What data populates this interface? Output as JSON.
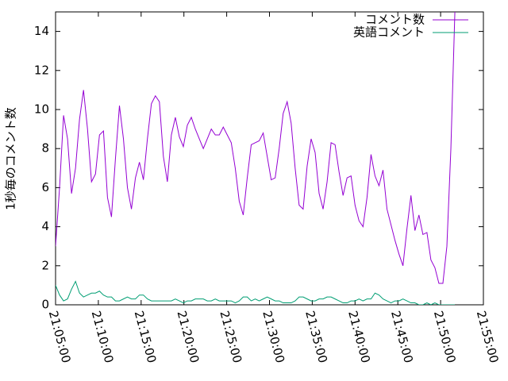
{
  "chart_data": {
    "type": "line",
    "ylabel": "1秒毎のコメント数",
    "x": [
      "21:05:00",
      "21:05:28",
      "21:05:56",
      "21:06:24",
      "21:06:52",
      "21:07:20",
      "21:07:48",
      "21:08:16",
      "21:08:44",
      "21:09:12",
      "21:09:40",
      "21:10:08",
      "21:10:36",
      "21:11:04",
      "21:11:32",
      "21:12:00",
      "21:12:28",
      "21:12:56",
      "21:13:24",
      "21:13:52",
      "21:14:20",
      "21:14:48",
      "21:15:16",
      "21:15:44",
      "21:16:12",
      "21:16:40",
      "21:17:08",
      "21:17:36",
      "21:18:04",
      "21:18:32",
      "21:19:00",
      "21:19:28",
      "21:19:56",
      "21:20:24",
      "21:20:52",
      "21:21:20",
      "21:21:48",
      "21:22:16",
      "21:22:44",
      "21:23:12",
      "21:23:40",
      "21:24:08",
      "21:24:36",
      "21:25:04",
      "21:25:32",
      "21:26:00",
      "21:26:28",
      "21:26:56",
      "21:27:24",
      "21:27:52",
      "21:28:20",
      "21:28:48",
      "21:29:16",
      "21:29:44",
      "21:30:12",
      "21:30:40",
      "21:31:08",
      "21:31:36",
      "21:32:04",
      "21:32:32",
      "21:33:00",
      "21:33:28",
      "21:33:56",
      "21:34:24",
      "21:34:52",
      "21:35:20",
      "21:35:48",
      "21:36:16",
      "21:36:44",
      "21:37:12",
      "21:37:40",
      "21:38:08",
      "21:38:36",
      "21:39:04",
      "21:39:32",
      "21:40:00",
      "21:40:28",
      "21:40:56",
      "21:41:24",
      "21:41:52",
      "21:42:20",
      "21:42:48",
      "21:43:16",
      "21:43:44",
      "21:44:12",
      "21:44:40",
      "21:45:08",
      "21:45:36",
      "21:46:04",
      "21:46:32",
      "21:47:00",
      "21:47:28",
      "21:47:56",
      "21:48:24",
      "21:48:52",
      "21:49:20",
      "21:49:48",
      "21:50:16",
      "21:50:44",
      "21:51:12",
      "21:51:40"
    ],
    "series": [
      {
        "name": "コメント数",
        "color": "#9400d3",
        "values": [
          3.0,
          6.0,
          9.7,
          8.5,
          5.7,
          7.0,
          9.5,
          11.0,
          9.0,
          6.3,
          6.7,
          8.7,
          8.9,
          5.5,
          4.5,
          7.5,
          10.2,
          8.5,
          6.0,
          4.9,
          6.5,
          7.3,
          6.4,
          8.5,
          10.3,
          10.7,
          10.4,
          7.6,
          6.3,
          8.7,
          9.6,
          8.6,
          8.1,
          9.2,
          9.6,
          9.0,
          8.5,
          8.0,
          8.5,
          9.0,
          8.7,
          8.7,
          9.1,
          8.7,
          8.3,
          7.0,
          5.3,
          4.6,
          6.5,
          8.2,
          8.3,
          8.4,
          8.8,
          7.6,
          6.4,
          6.5,
          8.0,
          9.8,
          10.4,
          9.3,
          7.0,
          5.1,
          4.9,
          7.1,
          8.5,
          7.8,
          5.7,
          4.9,
          6.3,
          8.3,
          8.2,
          6.8,
          5.6,
          6.5,
          6.6,
          5.1,
          4.3,
          4.0,
          5.5,
          7.7,
          6.6,
          6.1,
          6.9,
          4.9,
          4.1,
          3.3,
          2.6,
          2.0,
          3.9,
          5.6,
          3.8,
          4.6,
          3.6,
          3.7,
          2.3,
          1.9,
          1.1,
          1.1,
          3.0,
          8.0,
          15
        ]
      },
      {
        "name": "英語コメント",
        "color": "#009e73",
        "values": [
          1.0,
          0.5,
          0.2,
          0.3,
          0.8,
          1.2,
          0.6,
          0.4,
          0.5,
          0.6,
          0.6,
          0.7,
          0.5,
          0.4,
          0.4,
          0.2,
          0.2,
          0.3,
          0.4,
          0.3,
          0.3,
          0.5,
          0.5,
          0.3,
          0.2,
          0.2,
          0.2,
          0.2,
          0.2,
          0.2,
          0.3,
          0.2,
          0.1,
          0.2,
          0.2,
          0.3,
          0.3,
          0.3,
          0.2,
          0.2,
          0.3,
          0.2,
          0.2,
          0.2,
          0.2,
          0.1,
          0.2,
          0.4,
          0.4,
          0.2,
          0.3,
          0.2,
          0.3,
          0.4,
          0.3,
          0.2,
          0.2,
          0.1,
          0.1,
          0.1,
          0.2,
          0.4,
          0.4,
          0.3,
          0.2,
          0.2,
          0.3,
          0.3,
          0.4,
          0.4,
          0.3,
          0.2,
          0.1,
          0.1,
          0.2,
          0.2,
          0.3,
          0.2,
          0.3,
          0.3,
          0.6,
          0.5,
          0.3,
          0.2,
          0.1,
          0.2,
          0.2,
          0.3,
          0.2,
          0.1,
          0.1,
          0,
          0,
          0.1,
          0,
          0.1,
          0,
          0,
          0,
          0,
          0
        ]
      }
    ],
    "xlim": [
      "21:05:00",
      "21:55:00"
    ],
    "xticks": [
      "21:05:00",
      "21:10:00",
      "21:15:00",
      "21:20:00",
      "21:25:00",
      "21:30:00",
      "21:35:00",
      "21:40:00",
      "21:45:00",
      "21:50:00",
      "21:55:00"
    ],
    "ylim": [
      0,
      15
    ],
    "yticks": [
      0,
      2,
      4,
      6,
      8,
      10,
      12,
      14
    ],
    "legend": "top-right"
  }
}
